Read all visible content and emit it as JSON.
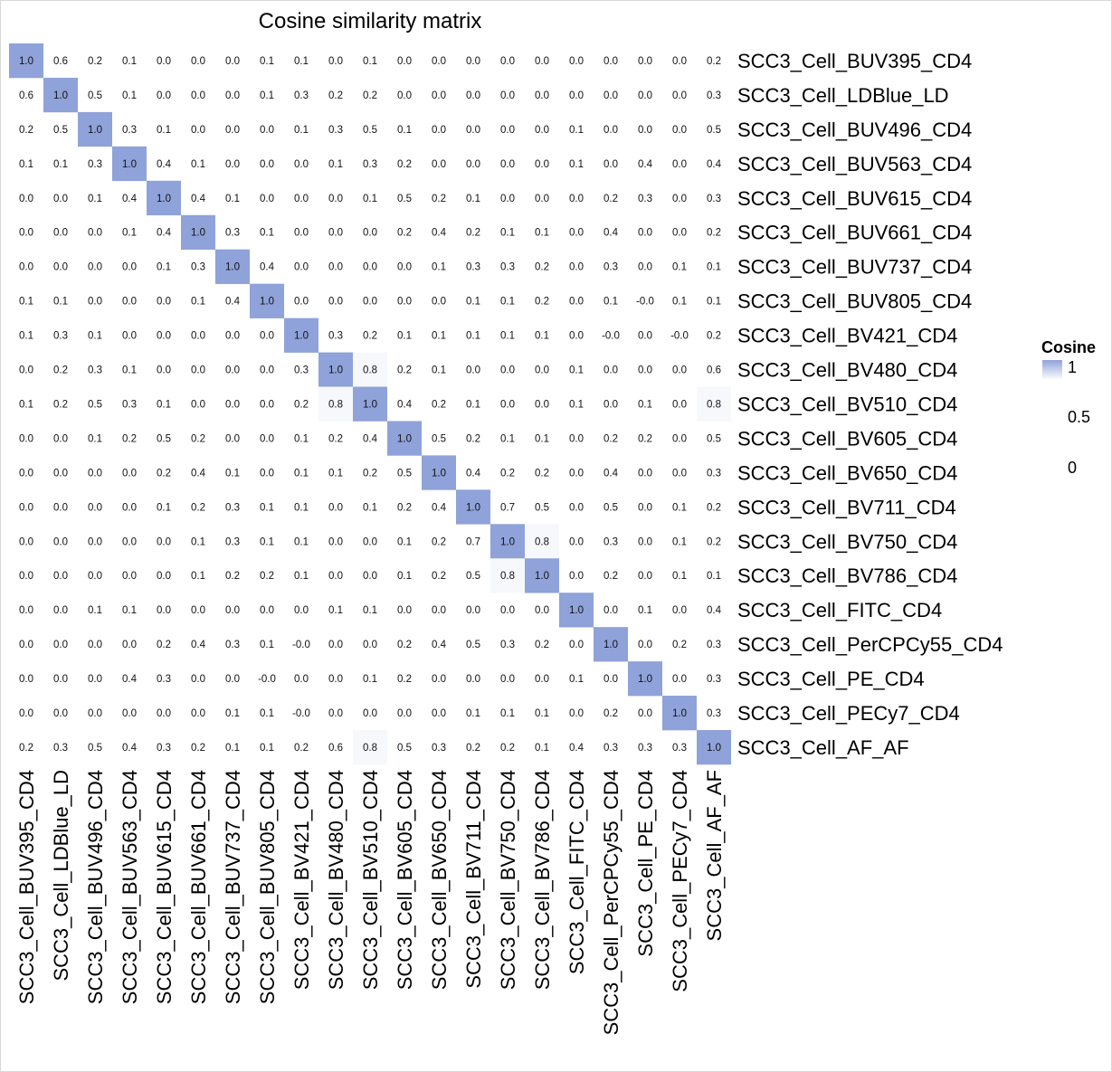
{
  "chart_data": {
    "type": "heatmap",
    "title": "Cosine similarity matrix",
    "labels": [
      "SCC3_Cell_BUV395_CD4",
      "SCC3_Cell_LDBlue_LD",
      "SCC3_Cell_BUV496_CD4",
      "SCC3_Cell_BUV563_CD4",
      "SCC3_Cell_BUV615_CD4",
      "SCC3_Cell_BUV661_CD4",
      "SCC3_Cell_BUV737_CD4",
      "SCC3_Cell_BUV805_CD4",
      "SCC3_Cell_BV421_CD4",
      "SCC3_Cell_BV480_CD4",
      "SCC3_Cell_BV510_CD4",
      "SCC3_Cell_BV605_CD4",
      "SCC3_Cell_BV650_CD4",
      "SCC3_Cell_BV711_CD4",
      "SCC3_Cell_BV750_CD4",
      "SCC3_Cell_BV786_CD4",
      "SCC3_Cell_FITC_CD4",
      "SCC3_Cell_PerCPCy55_CD4",
      "SCC3_Cell_PE_CD4",
      "SCC3_Cell_PECy7_CD4",
      "SCC3_Cell_AF_AF"
    ],
    "matrix": [
      [
        "1.0",
        "0.6",
        "0.2",
        "0.1",
        "0.0",
        "0.0",
        "0.0",
        "0.1",
        "0.1",
        "0.0",
        "0.1",
        "0.0",
        "0.0",
        "0.0",
        "0.0",
        "0.0",
        "0.0",
        "0.0",
        "0.0",
        "0.0",
        "0.2"
      ],
      [
        "0.6",
        "1.0",
        "0.5",
        "0.1",
        "0.0",
        "0.0",
        "0.0",
        "0.1",
        "0.3",
        "0.2",
        "0.2",
        "0.0",
        "0.0",
        "0.0",
        "0.0",
        "0.0",
        "0.0",
        "0.0",
        "0.0",
        "0.0",
        "0.3"
      ],
      [
        "0.2",
        "0.5",
        "1.0",
        "0.3",
        "0.1",
        "0.0",
        "0.0",
        "0.0",
        "0.1",
        "0.3",
        "0.5",
        "0.1",
        "0.0",
        "0.0",
        "0.0",
        "0.0",
        "0.1",
        "0.0",
        "0.0",
        "0.0",
        "0.5"
      ],
      [
        "0.1",
        "0.1",
        "0.3",
        "1.0",
        "0.4",
        "0.1",
        "0.0",
        "0.0",
        "0.0",
        "0.1",
        "0.3",
        "0.2",
        "0.0",
        "0.0",
        "0.0",
        "0.0",
        "0.1",
        "0.0",
        "0.4",
        "0.0",
        "0.4"
      ],
      [
        "0.0",
        "0.0",
        "0.1",
        "0.4",
        "1.0",
        "0.4",
        "0.1",
        "0.0",
        "0.0",
        "0.0",
        "0.1",
        "0.5",
        "0.2",
        "0.1",
        "0.0",
        "0.0",
        "0.0",
        "0.2",
        "0.3",
        "0.0",
        "0.3"
      ],
      [
        "0.0",
        "0.0",
        "0.0",
        "0.1",
        "0.4",
        "1.0",
        "0.3",
        "0.1",
        "0.0",
        "0.0",
        "0.0",
        "0.2",
        "0.4",
        "0.2",
        "0.1",
        "0.1",
        "0.0",
        "0.4",
        "0.0",
        "0.0",
        "0.2"
      ],
      [
        "0.0",
        "0.0",
        "0.0",
        "0.0",
        "0.1",
        "0.3",
        "1.0",
        "0.4",
        "0.0",
        "0.0",
        "0.0",
        "0.0",
        "0.1",
        "0.3",
        "0.3",
        "0.2",
        "0.0",
        "0.3",
        "0.0",
        "0.1",
        "0.1"
      ],
      [
        "0.1",
        "0.1",
        "0.0",
        "0.0",
        "0.0",
        "0.1",
        "0.4",
        "1.0",
        "0.0",
        "0.0",
        "0.0",
        "0.0",
        "0.0",
        "0.1",
        "0.1",
        "0.2",
        "0.0",
        "0.1",
        "-0.0",
        "0.1",
        "0.1"
      ],
      [
        "0.1",
        "0.3",
        "0.1",
        "0.0",
        "0.0",
        "0.0",
        "0.0",
        "0.0",
        "1.0",
        "0.3",
        "0.2",
        "0.1",
        "0.1",
        "0.1",
        "0.1",
        "0.1",
        "0.0",
        "-0.0",
        "0.0",
        "-0.0",
        "0.2"
      ],
      [
        "0.0",
        "0.2",
        "0.3",
        "0.1",
        "0.0",
        "0.0",
        "0.0",
        "0.0",
        "0.3",
        "1.0",
        "0.8",
        "0.2",
        "0.1",
        "0.0",
        "0.0",
        "0.0",
        "0.1",
        "0.0",
        "0.0",
        "0.0",
        "0.6"
      ],
      [
        "0.1",
        "0.2",
        "0.5",
        "0.3",
        "0.1",
        "0.0",
        "0.0",
        "0.0",
        "0.2",
        "0.8",
        "1.0",
        "0.4",
        "0.2",
        "0.1",
        "0.0",
        "0.0",
        "0.1",
        "0.0",
        "0.1",
        "0.0",
        "0.8"
      ],
      [
        "0.0",
        "0.0",
        "0.1",
        "0.2",
        "0.5",
        "0.2",
        "0.0",
        "0.0",
        "0.1",
        "0.2",
        "0.4",
        "1.0",
        "0.5",
        "0.2",
        "0.1",
        "0.1",
        "0.0",
        "0.2",
        "0.2",
        "0.0",
        "0.5"
      ],
      [
        "0.0",
        "0.0",
        "0.0",
        "0.0",
        "0.2",
        "0.4",
        "0.1",
        "0.0",
        "0.1",
        "0.1",
        "0.2",
        "0.5",
        "1.0",
        "0.4",
        "0.2",
        "0.2",
        "0.0",
        "0.4",
        "0.0",
        "0.0",
        "0.3"
      ],
      [
        "0.0",
        "0.0",
        "0.0",
        "0.0",
        "0.1",
        "0.2",
        "0.3",
        "0.1",
        "0.1",
        "0.0",
        "0.1",
        "0.2",
        "0.4",
        "1.0",
        "0.7",
        "0.5",
        "0.0",
        "0.5",
        "0.0",
        "0.1",
        "0.2"
      ],
      [
        "0.0",
        "0.0",
        "0.0",
        "0.0",
        "0.0",
        "0.1",
        "0.3",
        "0.1",
        "0.1",
        "0.0",
        "0.0",
        "0.1",
        "0.2",
        "0.7",
        "1.0",
        "0.8",
        "0.0",
        "0.3",
        "0.0",
        "0.1",
        "0.2"
      ],
      [
        "0.0",
        "0.0",
        "0.0",
        "0.0",
        "0.0",
        "0.1",
        "0.2",
        "0.2",
        "0.1",
        "0.0",
        "0.0",
        "0.1",
        "0.2",
        "0.5",
        "0.8",
        "1.0",
        "0.0",
        "0.2",
        "0.0",
        "0.1",
        "0.1"
      ],
      [
        "0.0",
        "0.0",
        "0.1",
        "0.1",
        "0.0",
        "0.0",
        "0.0",
        "0.0",
        "0.0",
        "0.1",
        "0.1",
        "0.0",
        "0.0",
        "0.0",
        "0.0",
        "0.0",
        "1.0",
        "0.0",
        "0.1",
        "0.0",
        "0.4"
      ],
      [
        "0.0",
        "0.0",
        "0.0",
        "0.0",
        "0.2",
        "0.4",
        "0.3",
        "0.1",
        "-0.0",
        "0.0",
        "0.0",
        "0.2",
        "0.4",
        "0.5",
        "0.3",
        "0.2",
        "0.0",
        "1.0",
        "0.0",
        "0.2",
        "0.3"
      ],
      [
        "0.0",
        "0.0",
        "0.0",
        "0.4",
        "0.3",
        "0.0",
        "0.0",
        "-0.0",
        "0.0",
        "0.0",
        "0.1",
        "0.2",
        "0.0",
        "0.0",
        "0.0",
        "0.0",
        "0.1",
        "0.0",
        "1.0",
        "0.0",
        "0.3"
      ],
      [
        "0.0",
        "0.0",
        "0.0",
        "0.0",
        "0.0",
        "0.0",
        "0.1",
        "0.1",
        "-0.0",
        "0.0",
        "0.0",
        "0.0",
        "0.0",
        "0.1",
        "0.1",
        "0.1",
        "0.0",
        "0.2",
        "0.0",
        "1.0",
        "0.3"
      ],
      [
        "0.2",
        "0.3",
        "0.5",
        "0.4",
        "0.3",
        "0.2",
        "0.1",
        "0.1",
        "0.2",
        "0.6",
        "0.8",
        "0.5",
        "0.3",
        "0.2",
        "0.2",
        "0.1",
        "0.4",
        "0.3",
        "0.3",
        "0.3",
        "1.0"
      ]
    ],
    "color_scale": {
      "title": "Cosine",
      "ticks": [
        "1",
        "0.5",
        "0"
      ],
      "high_color": "#8fa2d9",
      "low_color": "#ffffff",
      "visible_threshold": 0.75
    },
    "grid": false
  }
}
